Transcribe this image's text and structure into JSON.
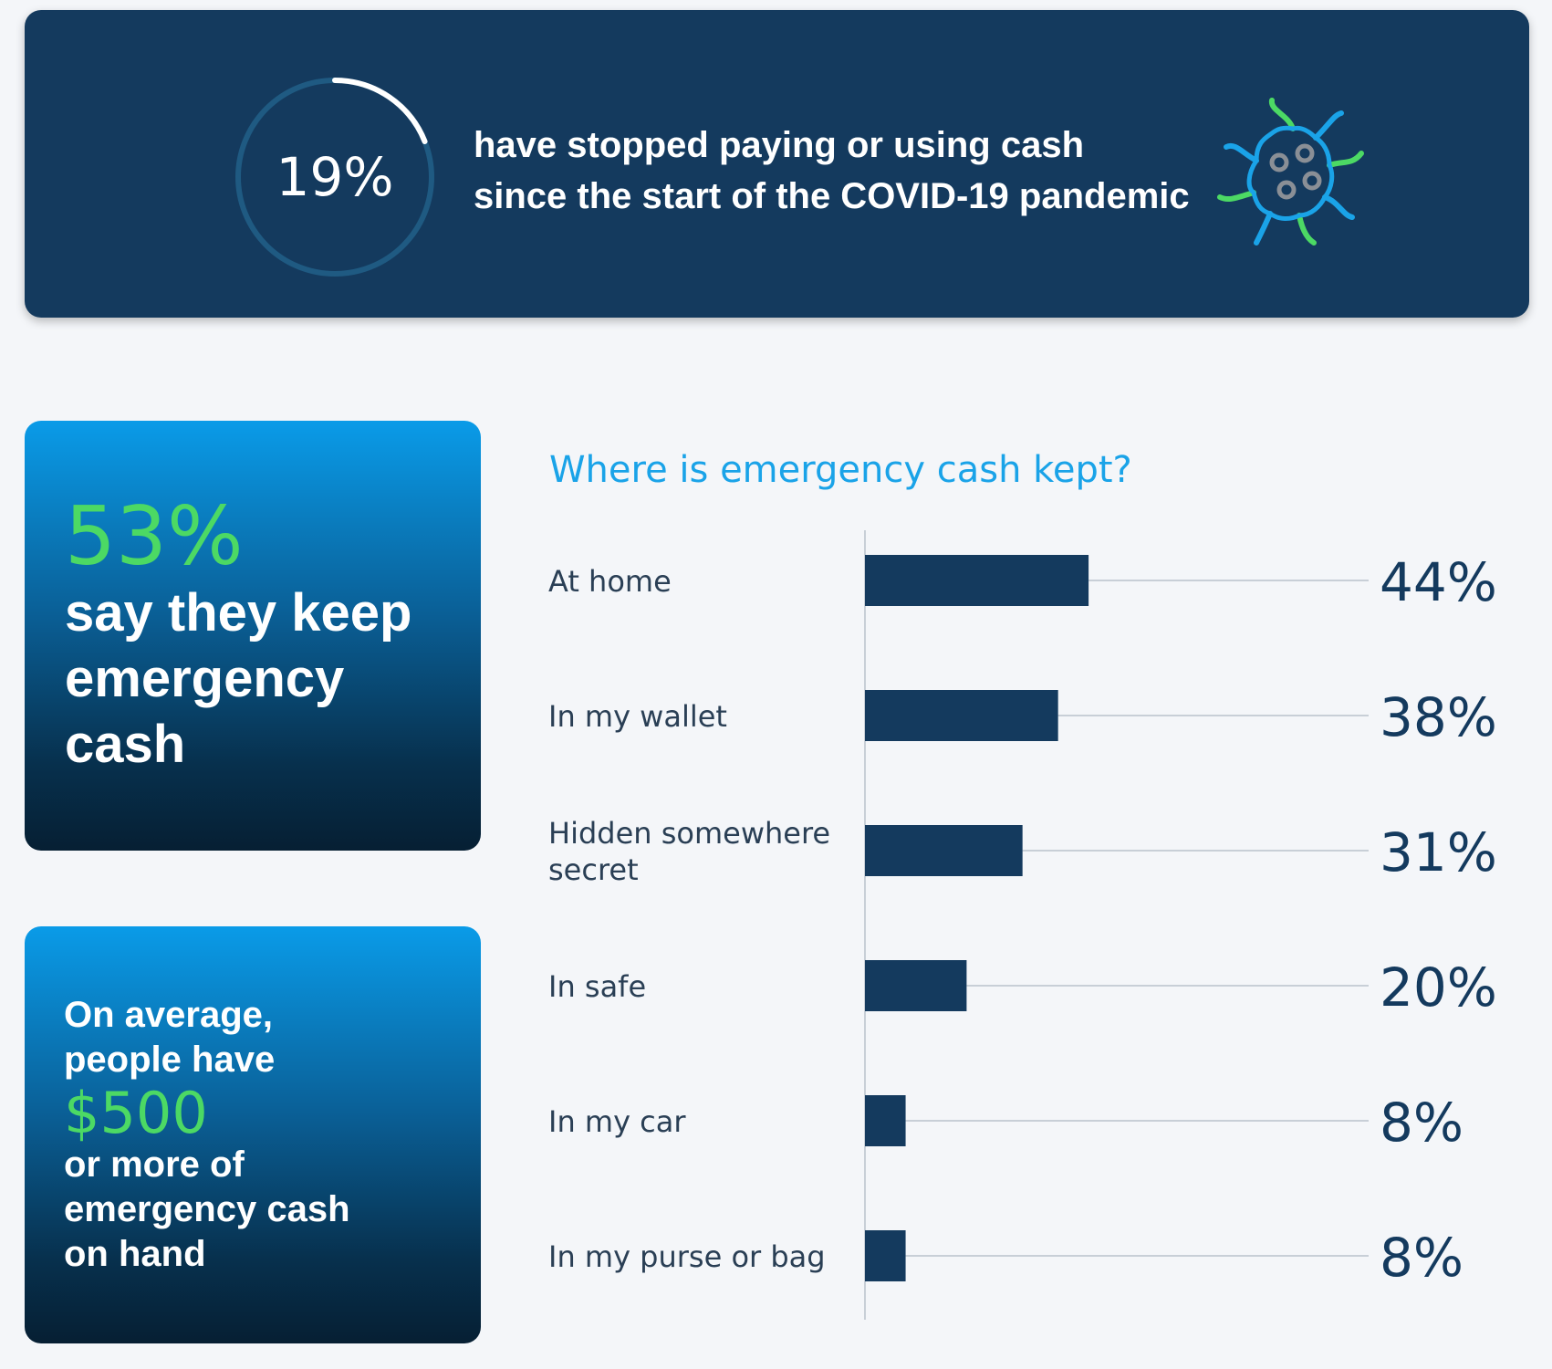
{
  "banner": {
    "percent_label": "19%",
    "percent_value": 19,
    "line1": "have stopped paying or using cash",
    "line2": "since the start of the COVID-19 pandemic",
    "icon": "virus-icon",
    "colors": {
      "background": "#143a5e",
      "ring_track": "#1f5a82",
      "ring_fill": "#ffffff"
    }
  },
  "card_keep": {
    "percent": "53%",
    "lines": [
      "say they keep",
      "emergency",
      "cash"
    ]
  },
  "card_average": {
    "lines_top": [
      "On average,",
      "people have"
    ],
    "amount": "$500",
    "lines_bottom": [
      "or more of",
      "emergency cash",
      "on hand"
    ]
  },
  "chart_data": {
    "type": "bar",
    "orientation": "horizontal",
    "title": "Where is emergency cash kept?",
    "categories": [
      [
        "At home"
      ],
      [
        "In my wallet"
      ],
      [
        "Hidden somewhere",
        "secret"
      ],
      [
        "In safe"
      ],
      [
        "In my car"
      ],
      [
        "In my purse or bag"
      ]
    ],
    "values": [
      44,
      38,
      31,
      20,
      8,
      8
    ],
    "value_labels": [
      "44%",
      "38%",
      "31%",
      "20%",
      "8%",
      "8%"
    ],
    "xlim": [
      0,
      100
    ],
    "bar_color": "#143a5e",
    "grid": false
  }
}
